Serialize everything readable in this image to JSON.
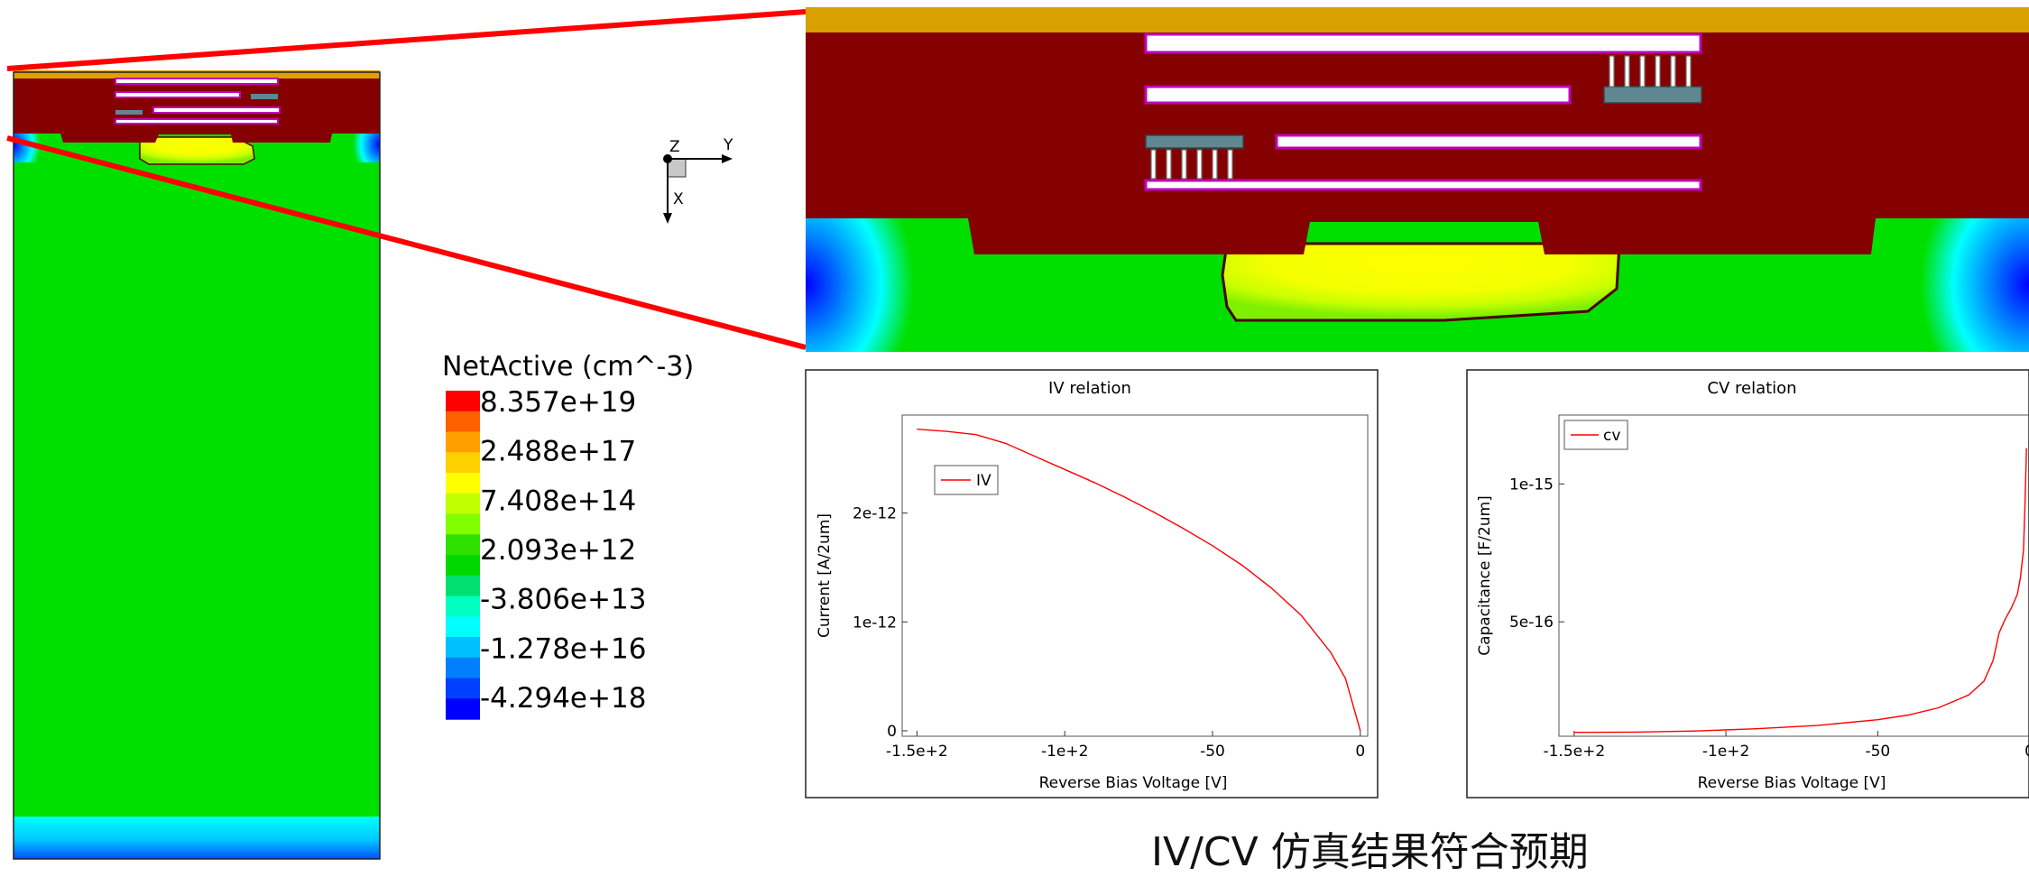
{
  "legend": {
    "title": "NetActive (cm^-3)",
    "ticks": [
      "8.357e+19",
      "2.488e+17",
      "7.408e+14",
      "2.093e+12",
      "-3.806e+13",
      "-1.278e+16",
      "-4.294e+18"
    ],
    "colors": [
      "#ff0000",
      "#ff6000",
      "#ffa000",
      "#ffd000",
      "#ffff00",
      "#c0ff00",
      "#80ff00",
      "#30e000",
      "#00d800",
      "#00e070",
      "#00ffc0",
      "#00ffff",
      "#00c0ff",
      "#0080ff",
      "#0040ff",
      "#0000ff"
    ]
  },
  "axes_glyph": {
    "z": "Z",
    "y": "Y",
    "x": "X"
  },
  "chart_data": [
    {
      "type": "line",
      "title": "IV relation",
      "xlabel": "Reverse Bias Voltage [V]",
      "ylabel": "Current [A/2um]",
      "xlim": [
        -155,
        2.5
      ],
      "ylim": [
        -5e-14,
        2.9e-12
      ],
      "xticks": [
        {
          "v": -150,
          "label": "-1.5e+2"
        },
        {
          "v": -100,
          "label": "-1e+2"
        },
        {
          "v": -50,
          "label": "-50"
        },
        {
          "v": 0,
          "label": "0"
        }
      ],
      "yticks": [
        {
          "v": 0,
          "label": "0"
        },
        {
          "v": 1e-12,
          "label": "1e-12"
        },
        {
          "v": 2e-12,
          "label": "2e-12"
        }
      ],
      "legend": {
        "position": "top-left",
        "labels": [
          "IV"
        ]
      },
      "series": [
        {
          "name": "IV",
          "color": "#ff0000",
          "x": [
            -150,
            -140,
            -130,
            -120,
            -110,
            -100,
            -90,
            -80,
            -70,
            -60,
            -50,
            -40,
            -30,
            -20,
            -10,
            -5,
            0
          ],
          "y": [
            2.77e-12,
            2.75e-12,
            2.72e-12,
            2.64e-12,
            2.52e-12,
            2.4e-12,
            2.28e-12,
            2.15e-12,
            2.01e-12,
            1.86e-12,
            1.7e-12,
            1.52e-12,
            1.31e-12,
            1.06e-12,
            7.2e-13,
            4.8e-13,
            0.0
          ]
        }
      ]
    },
    {
      "type": "line",
      "title": "CV relation",
      "xlabel": "Reverse Bias Voltage [V]",
      "ylabel": "Capacitance [F/2um]",
      "xlim": [
        -155,
        2.5
      ],
      "ylim": [
        8.5e-17,
        1.25e-15
      ],
      "xticks": [
        {
          "v": -150,
          "label": "-1.5e+2"
        },
        {
          "v": -100,
          "label": "-1e+2"
        },
        {
          "v": -50,
          "label": "-50"
        },
        {
          "v": 0,
          "label": "0"
        }
      ],
      "yticks": [
        {
          "v": 5e-16,
          "label": "5e-16"
        },
        {
          "v": 1e-15,
          "label": "1e-15"
        }
      ],
      "legend": {
        "position": "top-left",
        "labels": [
          "cv"
        ]
      },
      "series": [
        {
          "name": "cv",
          "color": "#ff0000",
          "x": [
            -150,
            -130,
            -110,
            -90,
            -70,
            -50,
            -40,
            -30,
            -20,
            -15,
            -12,
            -10,
            -8,
            -6,
            -4,
            -3,
            -2,
            -1.5,
            -1
          ],
          "y": [
            9.9e-17,
            1e-16,
            1.04e-16,
            1.12e-16,
            1.24e-16,
            1.45e-16,
            1.62e-16,
            1.88e-16,
            2.35e-16,
            2.85e-16,
            3.6e-16,
            4.6e-16,
            5.1e-16,
            5.5e-16,
            6e-16,
            6.6e-16,
            7.6e-16,
            9.2e-16,
            1.13e-15
          ]
        }
      ]
    }
  ],
  "caption": "IV/CV 仿真结果符合预期"
}
